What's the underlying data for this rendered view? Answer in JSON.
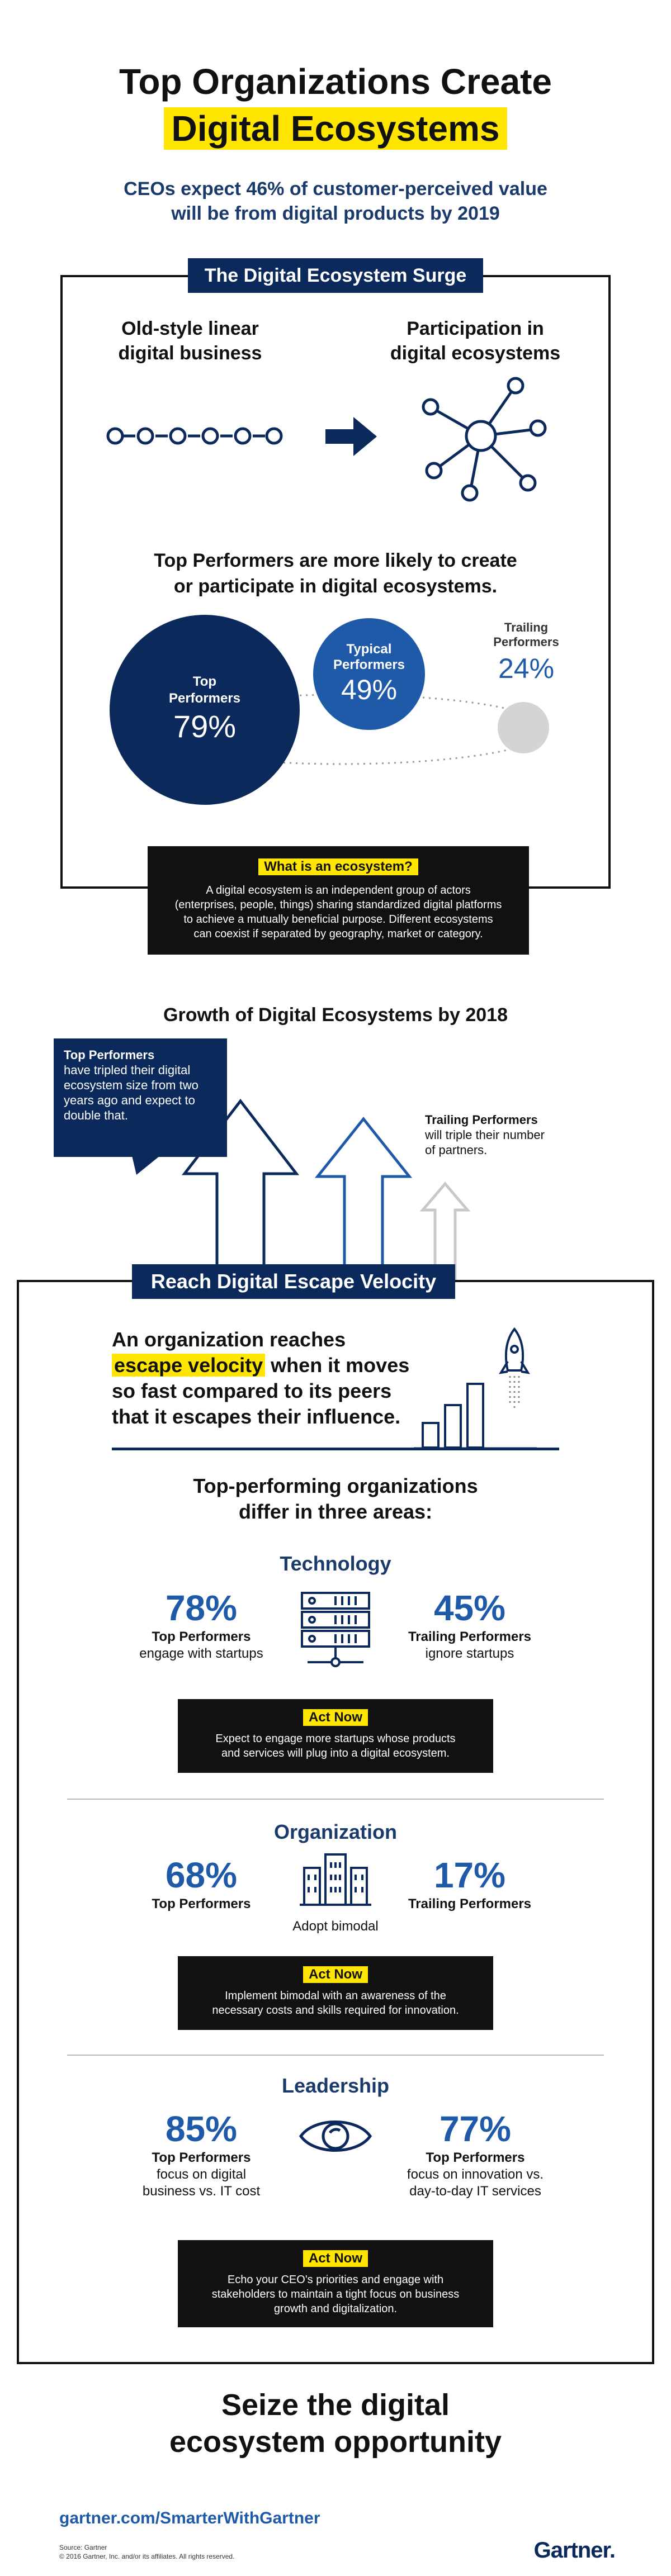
{
  "header": {
    "title_line1": "Top Organizations Create",
    "title_line2": "Digital Ecosystems",
    "subtitle_line1": "CEOs expect 46% of customer-perceived value",
    "subtitle_line2": "will be from digital products by 2019"
  },
  "surge": {
    "tag": "The Digital Ecosystem Surge",
    "left_heading_line1": "Old-style linear",
    "left_heading_line2": "digital business",
    "right_heading_line1": "Participation in",
    "right_heading_line2": "digital ecosystems",
    "performers_line1": "Top Performers are more likely to create",
    "performers_line2": "or participate in digital ecosystems.",
    "top_label_line1": "Top",
    "top_label_line2": "Performers",
    "top_value": "79%",
    "typical_label_line1": "Typical",
    "typical_label_line2": "Performers",
    "typical_value": "49%",
    "trailing_label_line1": "Trailing",
    "trailing_label_line2": "Performers",
    "trailing_value": "24%"
  },
  "ecosystem_def": {
    "label": "What is an ecosystem?",
    "line1": "A digital ecosystem is an independent group of actors",
    "line2": "(enterprises, people, things) sharing standardized digital platforms",
    "line3": "to achieve a mutually beneficial purpose. Different ecosystems",
    "line4": "can coexist if separated by geography, market or category."
  },
  "growth": {
    "title": "Growth of Digital Ecosystems by 2018",
    "top_bold": "Top Performers",
    "top_line1": "have tripled their digital",
    "top_line2": "ecosystem size from two",
    "top_line3": "years ago and expect to",
    "top_line4": "double that.",
    "trailing_bold": "Trailing Performers",
    "trailing_line1": "will triple their number",
    "trailing_line2": "of partners."
  },
  "velocity": {
    "tag": "Reach Digital Escape Velocity",
    "line1": "An organization reaches",
    "line2_hl": "escape velocity",
    "line2_rest": " when it moves",
    "line3": "so fast compared to its peers",
    "line4": "that it escapes their influence.",
    "differ_line1": "Top-performing organizations",
    "differ_line2": "differ in three areas:"
  },
  "technology": {
    "heading": "Technology",
    "left_value": "78%",
    "left_bold": "Top Performers",
    "left_text": "engage with startups",
    "right_value": "45%",
    "right_bold": "Trailing Performers",
    "right_text": "ignore startups",
    "act_label": "Act Now",
    "act_line1": "Expect to engage more startups whose products",
    "act_line2": "and services will plug into a digital ecosystem."
  },
  "organization": {
    "heading": "Organization",
    "left_value": "68%",
    "left_bold": "Top Performers",
    "center_text": "Adopt bimodal",
    "right_value": "17%",
    "right_bold": "Trailing Performers",
    "act_label": "Act Now",
    "act_line1": "Implement bimodal with an awareness of the",
    "act_line2": "necessary costs and skills required for innovation."
  },
  "leadership": {
    "heading": "Leadership",
    "left_value": "85%",
    "left_bold": "Top Performers",
    "left_line1": "focus on digital",
    "left_line2": "business vs. IT cost",
    "right_value": "77%",
    "right_bold": "Top Performers",
    "right_line1": "focus on innovation vs.",
    "right_line2": "day-to-day IT services",
    "act_label": "Act Now",
    "act_line1": "Echo your CEO's priorities and engage with",
    "act_line2": "stakeholders to maintain a tight focus on business",
    "act_line3": "growth and digitalization."
  },
  "closing": {
    "line1": "Seize the digital",
    "line2": "ecosystem opportunity"
  },
  "footer": {
    "url": "gartner.com/SmarterWithGartner",
    "source": "Source: Gartner",
    "copyright": "© 2016 Gartner, Inc. and/or its affiliates. All rights reserved.",
    "logo": "Gartner."
  },
  "colors": {
    "navy": "#0b2a5b",
    "blue": "#1f5aa8",
    "yellow": "#ffe600",
    "gray": "#d4d4d4"
  }
}
